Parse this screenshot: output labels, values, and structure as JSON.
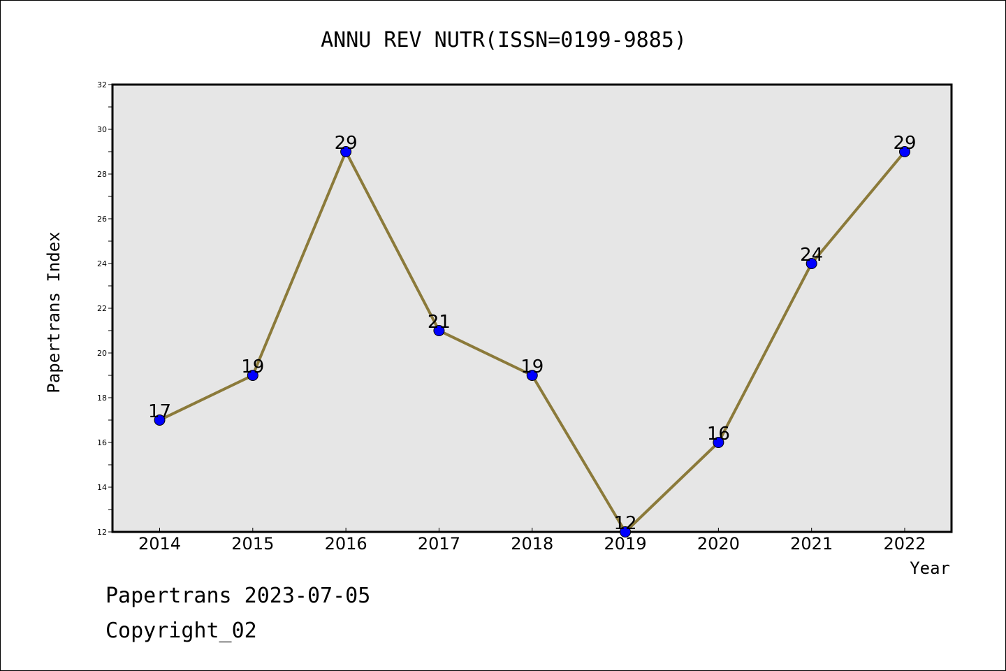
{
  "chart_data": {
    "type": "line",
    "title": "ANNU REV NUTR(ISSN=0199-9885)",
    "xlabel": "Year",
    "ylabel": "Papertrans Index",
    "categories": [
      "2014",
      "2015",
      "2016",
      "2017",
      "2018",
      "2019",
      "2020",
      "2021",
      "2022"
    ],
    "series": [
      {
        "values": [
          17,
          19,
          29,
          21,
          19,
          12,
          16,
          24,
          29
        ]
      }
    ],
    "data_labels": [
      "17",
      "19",
      "29",
      "21",
      "19",
      "12",
      "16",
      "24",
      "29"
    ],
    "ylim": [
      12,
      32
    ],
    "yticks": [
      "12",
      "14",
      "16",
      "18",
      "20",
      "22",
      "24",
      "26",
      "28",
      "30",
      "32"
    ],
    "grid": false,
    "colors": {
      "line": "#8B7A3A",
      "marker": "#0000FF",
      "plot_background": "#E6E6E6"
    }
  },
  "footer": {
    "line1": "Papertrans 2023-07-05",
    "line2": "Copyright_02"
  }
}
